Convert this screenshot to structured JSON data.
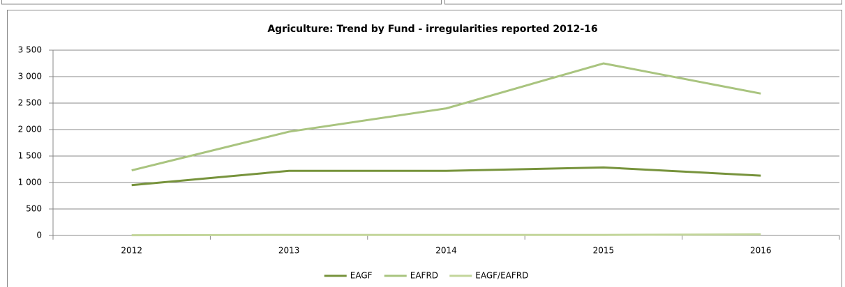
{
  "chart_data": {
    "type": "line",
    "title": "Agriculture: Trend by Fund  - irregularities reported 2012-16",
    "categories": [
      "2012",
      "2013",
      "2014",
      "2015",
      "2016"
    ],
    "series": [
      {
        "name": "EAGF",
        "color": "#77933c",
        "values": [
          950,
          1220,
          1220,
          1285,
          1130
        ]
      },
      {
        "name": "EAFRD",
        "color": "#a9c47f",
        "values": [
          1230,
          1960,
          2400,
          3250,
          2680
        ]
      },
      {
        "name": "EAGF/EAFRD",
        "color": "#c3d69b",
        "values": [
          5,
          10,
          10,
          10,
          20
        ]
      }
    ],
    "ylim": [
      0,
      3500
    ],
    "yticks": [
      0,
      500,
      {
        "value": 1000,
        "label": "1 000"
      },
      {
        "value": 1500,
        "label": "1 500"
      },
      {
        "value": 2000,
        "label": "2 000"
      },
      {
        "value": 2500,
        "label": "2 500"
      },
      {
        "value": 3000,
        "label": "3 000"
      },
      {
        "value": 3500,
        "label": "3 500"
      }
    ],
    "grid": true,
    "legend": "bottom"
  }
}
